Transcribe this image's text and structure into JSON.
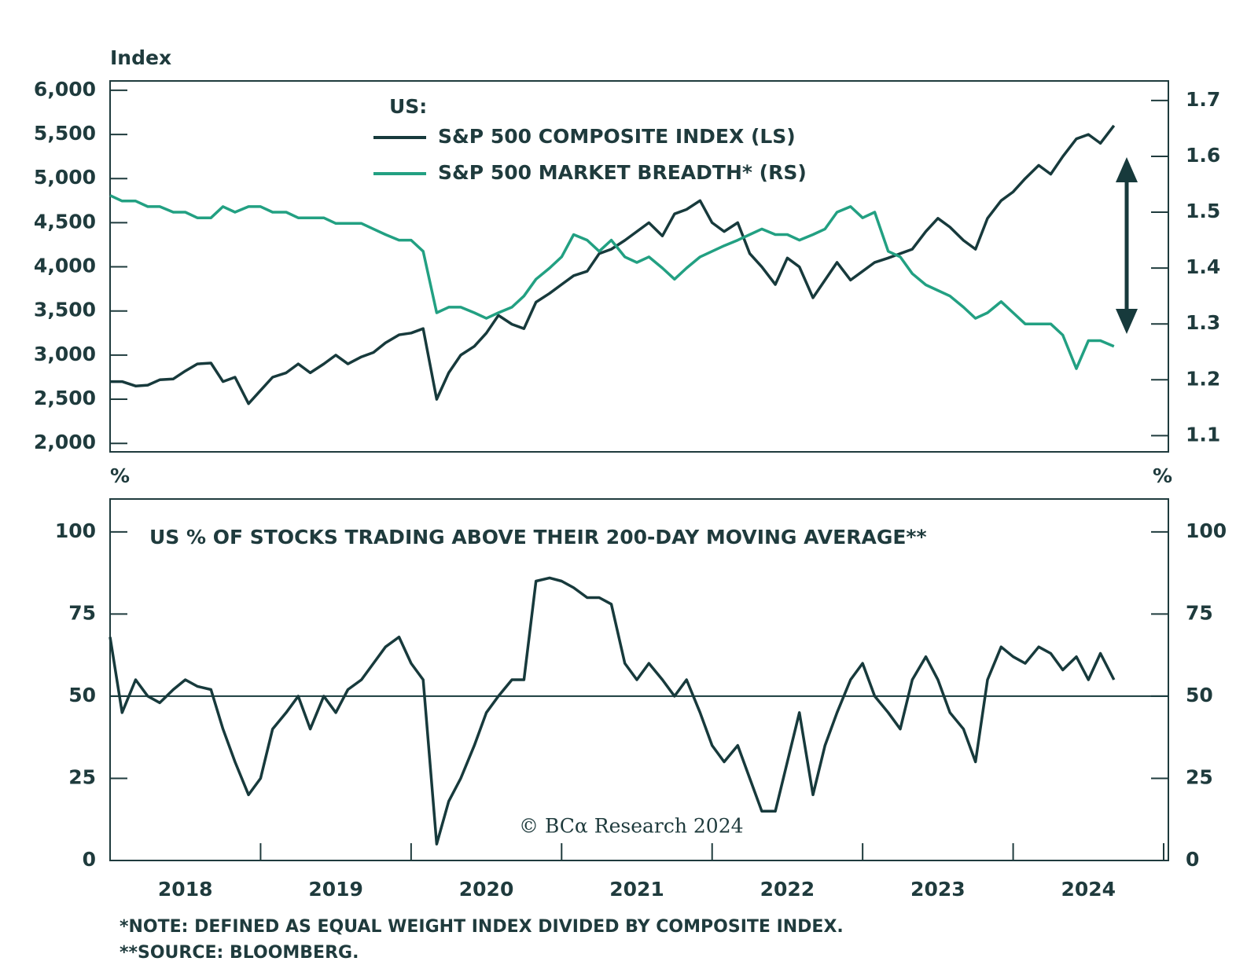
{
  "chart_data": [
    {
      "type": "line",
      "y_label": "Index",
      "legend_title": "US:",
      "x": [
        2018,
        2018.08,
        2018.17,
        2018.25,
        2018.33,
        2018.42,
        2018.5,
        2018.58,
        2018.67,
        2018.75,
        2018.83,
        2018.92,
        2019,
        2019.08,
        2019.17,
        2019.25,
        2019.33,
        2019.42,
        2019.5,
        2019.58,
        2019.67,
        2019.75,
        2019.83,
        2019.92,
        2020,
        2020.08,
        2020.17,
        2020.25,
        2020.33,
        2020.42,
        2020.5,
        2020.58,
        2020.67,
        2020.75,
        2020.83,
        2020.92,
        2021,
        2021.08,
        2021.17,
        2021.25,
        2021.33,
        2021.42,
        2021.5,
        2021.58,
        2021.67,
        2021.75,
        2021.83,
        2021.92,
        2022,
        2022.08,
        2022.17,
        2022.25,
        2022.33,
        2022.42,
        2022.5,
        2022.58,
        2022.67,
        2022.75,
        2022.83,
        2022.92,
        2023,
        2023.08,
        2023.17,
        2023.25,
        2023.33,
        2023.42,
        2023.5,
        2023.58,
        2023.67,
        2023.75,
        2023.83,
        2023.92,
        2024,
        2024.08,
        2024.17,
        2024.25,
        2024.33,
        2024.42,
        2024.5,
        2024.58,
        2024.67
      ],
      "xlim": [
        2018,
        2025
      ],
      "ylim": [
        1904,
        6106
      ],
      "yticks": [
        {
          "value": 2000,
          "label": "2,000"
        },
        {
          "value": 2500,
          "label": "2,500"
        },
        {
          "value": 3000,
          "label": "3,000"
        },
        {
          "value": 3500,
          "label": "3,500"
        },
        {
          "value": 4000,
          "label": "4,000"
        },
        {
          "value": 4500,
          "label": "4,500"
        },
        {
          "value": 5000,
          "label": "5,000"
        },
        {
          "value": 5500,
          "label": "5,500"
        },
        {
          "value": 6000,
          "label": "6,000"
        }
      ],
      "y2lim": [
        1.071,
        1.735
      ],
      "y2ticks": [
        1.1,
        1.2,
        1.3,
        1.4,
        1.5,
        1.6,
        1.7
      ],
      "series": [
        {
          "name": "S&P 500 COMPOSITE INDEX (LS)",
          "color": "#173a3c",
          "values": [
            2700,
            2700,
            2650,
            2660,
            2720,
            2730,
            2820,
            2900,
            2910,
            2700,
            2750,
            2450,
            2600,
            2750,
            2800,
            2900,
            2800,
            2900,
            3000,
            2900,
            2980,
            3030,
            3140,
            3230,
            3250,
            3300,
            2500,
            2800,
            3000,
            3100,
            3250,
            3450,
            3350,
            3300,
            3600,
            3700,
            3800,
            3900,
            3950,
            4150,
            4200,
            4300,
            4400,
            4500,
            4350,
            4600,
            4650,
            4750,
            4500,
            4400,
            4500,
            4150,
            4000,
            3800,
            4100,
            4000,
            3650,
            3850,
            4050,
            3850,
            3950,
            4050,
            4100,
            4150,
            4200,
            4400,
            4550,
            4450,
            4300,
            4200,
            4550,
            4750,
            4850,
            5000,
            5150,
            5050,
            5250,
            5450,
            5500,
            5400,
            5600
          ]
        },
        {
          "name": "S&P 500 MARKET BREADTH* (RS)",
          "color": "#22a082",
          "axis": "y2",
          "values": [
            1.53,
            1.52,
            1.52,
            1.51,
            1.51,
            1.5,
            1.5,
            1.49,
            1.49,
            1.51,
            1.5,
            1.51,
            1.51,
            1.5,
            1.5,
            1.49,
            1.49,
            1.49,
            1.48,
            1.48,
            1.48,
            1.47,
            1.46,
            1.45,
            1.45,
            1.43,
            1.32,
            1.33,
            1.33,
            1.32,
            1.31,
            1.32,
            1.33,
            1.35,
            1.38,
            1.4,
            1.42,
            1.46,
            1.45,
            1.43,
            1.45,
            1.42,
            1.41,
            1.42,
            1.4,
            1.38,
            1.4,
            1.42,
            1.43,
            1.44,
            1.45,
            1.46,
            1.47,
            1.46,
            1.46,
            1.45,
            1.46,
            1.47,
            1.5,
            1.51,
            1.49,
            1.5,
            1.43,
            1.42,
            1.39,
            1.37,
            1.36,
            1.35,
            1.33,
            1.31,
            1.32,
            1.34,
            1.32,
            1.3,
            1.3,
            1.3,
            1.28,
            1.22,
            1.27,
            1.27,
            1.26
          ]
        }
      ]
    },
    {
      "type": "line",
      "title": "US % OF STOCKS TRADING ABOVE THEIR 200-DAY MOVING AVERAGE**",
      "y_label": "%",
      "y2_label": "%",
      "x": [
        2018,
        2018.08,
        2018.17,
        2018.25,
        2018.33,
        2018.42,
        2018.5,
        2018.58,
        2018.67,
        2018.75,
        2018.83,
        2018.92,
        2019,
        2019.08,
        2019.17,
        2019.25,
        2019.33,
        2019.42,
        2019.5,
        2019.58,
        2019.67,
        2019.75,
        2019.83,
        2019.92,
        2020,
        2020.08,
        2020.17,
        2020.25,
        2020.33,
        2020.42,
        2020.5,
        2020.58,
        2020.67,
        2020.75,
        2020.83,
        2020.92,
        2021,
        2021.08,
        2021.17,
        2021.25,
        2021.33,
        2021.42,
        2021.5,
        2021.58,
        2021.67,
        2021.75,
        2021.83,
        2021.92,
        2022,
        2022.08,
        2022.17,
        2022.25,
        2022.33,
        2022.42,
        2022.5,
        2022.58,
        2022.67,
        2022.75,
        2022.83,
        2022.92,
        2023,
        2023.08,
        2023.17,
        2023.25,
        2023.33,
        2023.42,
        2023.5,
        2023.58,
        2023.67,
        2023.75,
        2023.83,
        2023.92,
        2024,
        2024.08,
        2024.17,
        2024.25,
        2024.33,
        2024.42,
        2024.5,
        2024.58,
        2024.67
      ],
      "xlim": [
        2018,
        2025
      ],
      "xticks": [
        {
          "value": 2018.5,
          "label": "2018"
        },
        {
          "value": 2019.5,
          "label": "2019"
        },
        {
          "value": 2020.5,
          "label": "2020"
        },
        {
          "value": 2021.5,
          "label": "2021"
        },
        {
          "value": 2022.5,
          "label": "2022"
        },
        {
          "value": 2023.5,
          "label": "2023"
        },
        {
          "value": 2024.5,
          "label": "2024"
        }
      ],
      "xminorticks": [
        2018,
        2019,
        2020,
        2021,
        2022,
        2023,
        2024,
        2025
      ],
      "ylim": [
        0,
        110
      ],
      "yticks": [
        0,
        25,
        50,
        75,
        100
      ],
      "y2lim": [
        0,
        110
      ],
      "y2ticks": [
        0,
        25,
        50,
        75,
        100
      ],
      "reference_line": 50,
      "series": [
        {
          "name": "US % OF STOCKS ABOVE 200-DAY MA",
          "color": "#173a3c",
          "values": [
            68,
            45,
            55,
            50,
            48,
            52,
            55,
            53,
            52,
            40,
            30,
            20,
            25,
            40,
            45,
            50,
            40,
            50,
            45,
            52,
            55,
            60,
            65,
            68,
            60,
            55,
            5,
            18,
            25,
            35,
            45,
            50,
            55,
            55,
            85,
            86,
            85,
            83,
            80,
            80,
            78,
            60,
            55,
            60,
            55,
            50,
            55,
            45,
            35,
            30,
            35,
            25,
            15,
            15,
            30,
            45,
            20,
            35,
            45,
            55,
            60,
            50,
            45,
            40,
            55,
            62,
            55,
            45,
            40,
            30,
            55,
            65,
            62,
            60,
            65,
            63,
            58,
            62,
            55,
            63,
            55
          ]
        }
      ]
    }
  ],
  "credit": "© BCα Research 2024",
  "notes": [
    "*NOTE: DEFINED AS EQUAL WEIGHT INDEX DIVIDED BY COMPOSITE INDEX.",
    "**SOURCE: BLOOMBERG."
  ]
}
